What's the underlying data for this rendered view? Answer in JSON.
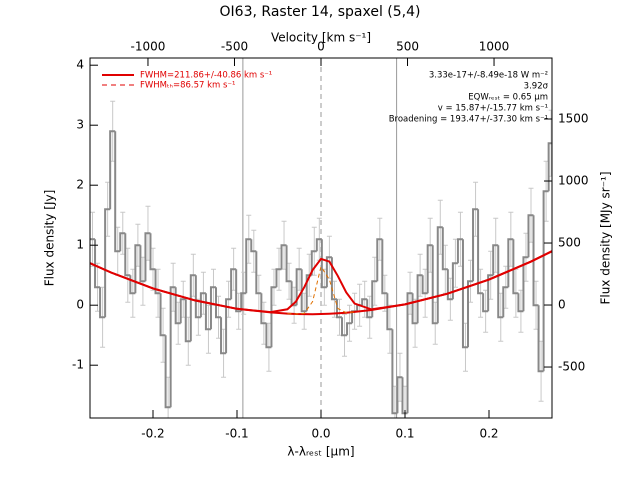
{
  "chart_data": {
    "type": "step",
    "title": "OI63, Raster 14, spaxel (5,4)",
    "xlabel": "λ-λᵣₑₛₜ [μm]",
    "ylabel": "Flux density [Jy]",
    "y2label": "Flux density [MJy sr⁻¹]",
    "x2label": "Velocity [km s⁻¹]",
    "xlim": [
      -0.275,
      0.275
    ],
    "xticks": [
      -0.2,
      -0.1,
      {
        "value": 0,
        "label": "0.0"
      },
      0.1,
      0.2
    ],
    "ylim": [
      -1.88,
      4.12
    ],
    "yticks": [
      -1,
      0,
      1,
      2,
      3,
      4
    ],
    "y2lim": [
      -911,
      1992
    ],
    "y2ticks": [
      -500,
      0,
      500,
      1000,
      1500
    ],
    "x2lim": [
      -1335,
      1335
    ],
    "x2ticks": [
      -1000,
      -500,
      0,
      500,
      1000
    ],
    "color": "#888888",
    "error_color": "#c8c8c8",
    "x": [
      -0.272,
      -0.266,
      -0.26,
      -0.254,
      -0.248,
      -0.242,
      -0.236,
      -0.23,
      -0.224,
      -0.218,
      -0.212,
      -0.206,
      -0.2,
      -0.194,
      -0.188,
      -0.182,
      -0.176,
      -0.17,
      -0.164,
      -0.158,
      -0.152,
      -0.146,
      -0.14,
      -0.134,
      -0.128,
      -0.122,
      -0.116,
      -0.11,
      -0.104,
      -0.098,
      -0.092,
      -0.086,
      -0.08,
      -0.074,
      -0.068,
      -0.062,
      -0.056,
      -0.05,
      -0.044,
      -0.038,
      -0.032,
      -0.026,
      -0.02,
      -0.014,
      -0.008,
      -0.002,
      0.004,
      0.01,
      0.016,
      0.022,
      0.028,
      0.034,
      0.04,
      0.046,
      0.052,
      0.058,
      0.064,
      0.07,
      0.076,
      0.082,
      0.088,
      0.094,
      0.1,
      0.106,
      0.112,
      0.118,
      0.124,
      0.13,
      0.136,
      0.142,
      0.148,
      0.154,
      0.16,
      0.166,
      0.172,
      0.178,
      0.184,
      0.19,
      0.196,
      0.202,
      0.208,
      0.214,
      0.22,
      0.226,
      0.232,
      0.238,
      0.244,
      0.25,
      0.256,
      0.262,
      0.268,
      0.274
    ],
    "values": [
      1.1,
      0.3,
      -0.2,
      1.6,
      2.9,
      0.9,
      1.2,
      0.5,
      0.2,
      1.0,
      0.4,
      1.2,
      0.6,
      0.2,
      -0.5,
      -1.7,
      0.3,
      -0.3,
      0.1,
      -0.6,
      0.5,
      -0.2,
      0.2,
      -0.4,
      0.3,
      -0.2,
      -0.8,
      0.1,
      0.6,
      -0.1,
      0.2,
      1.1,
      0.9,
      0.2,
      -0.3,
      -0.7,
      0.3,
      0.6,
      1.0,
      0.4,
      0.0,
      0.6,
      -0.1,
      0.5,
      0.9,
      1.1,
      0.3,
      0.8,
      0.1,
      -0.2,
      -0.5,
      -0.3,
      -0.1,
      0.0,
      0.1,
      -0.2,
      0.4,
      1.1,
      0.2,
      -0.4,
      -1.8,
      -1.2,
      -1.8,
      0.2,
      -0.3,
      0.5,
      0.2,
      1.0,
      -0.3,
      1.3,
      0.6,
      0.1,
      0.7,
      1.1,
      -0.7,
      0.4,
      1.6,
      0.2,
      -0.1,
      0.5,
      1.0,
      -0.2,
      0.3,
      1.1,
      0.2,
      -0.1,
      0.8,
      1.5,
      0.0,
      -1.1,
      1.9,
      2.7
    ],
    "errors": [
      0.45,
      0.4,
      0.5,
      0.45,
      0.5,
      0.4,
      0.35,
      0.45,
      0.4,
      0.35,
      0.4,
      0.45,
      0.35,
      0.4,
      0.45,
      0.5,
      0.4,
      0.35,
      0.3,
      0.4,
      0.35,
      0.3,
      0.35,
      0.4,
      0.3,
      0.35,
      0.4,
      0.3,
      0.35,
      0.3,
      0.35,
      0.4,
      0.35,
      0.3,
      0.35,
      0.4,
      0.3,
      0.35,
      0.4,
      0.3,
      0.3,
      0.35,
      0.3,
      0.35,
      0.4,
      0.35,
      0.3,
      0.35,
      0.3,
      0.3,
      0.35,
      0.3,
      0.3,
      0.35,
      0.3,
      0.35,
      0.4,
      0.35,
      0.3,
      0.4,
      0.45,
      0.4,
      0.45,
      0.35,
      0.4,
      0.35,
      0.4,
      0.45,
      0.35,
      0.45,
      0.4,
      0.35,
      0.4,
      0.45,
      0.4,
      0.35,
      0.45,
      0.4,
      0.35,
      0.4,
      0.45,
      0.4,
      0.35,
      0.45,
      0.4,
      0.35,
      0.4,
      0.45,
      0.4,
      0.5,
      0.5,
      0.55
    ],
    "reference_lines": [
      {
        "value": -0.093,
        "style": "solid"
      },
      {
        "value": 0,
        "style": "dashed"
      },
      {
        "value": 0.09,
        "style": "solid"
      }
    ],
    "fit": {
      "x": [
        -0.275,
        -0.25,
        -0.2,
        -0.15,
        -0.1,
        -0.06,
        -0.04,
        -0.03,
        -0.02,
        -0.01,
        0,
        0.01,
        0.02,
        0.03,
        0.04,
        0.06,
        0.1,
        0.15,
        0.2,
        0.25,
        0.275
      ],
      "lines": [
        {
          "color": "#e00000",
          "style": "solid",
          "values": [
            0.7,
            0.545,
            0.28,
            0.08,
            -0.06,
            -0.12,
            -0.14,
            -0.147,
            -0.149,
            -0.15,
            -0.147,
            -0.142,
            -0.135,
            -0.125,
            -0.112,
            -0.08,
            0.014,
            0.19,
            0.427,
            0.727,
            0.9
          ]
        },
        {
          "name": "FWHM=211.86+/-40.86 km s⁻¹",
          "color": "#e00000",
          "style": "solid",
          "values": [
            0.7,
            0.545,
            0.28,
            0.08,
            -0.06,
            -0.116,
            -0.068,
            0.058,
            0.298,
            0.586,
            0.772,
            0.727,
            0.488,
            0.214,
            0.027,
            -0.07,
            0.014,
            0.19,
            0.427,
            0.727,
            0.9
          ]
        },
        {
          "name": "FWHMₜₕ=86.57 km s⁻¹",
          "color": "#e07000",
          "style": "dashed",
          "values": [
            null,
            null,
            null,
            null,
            null,
            null,
            -0.14,
            -0.147,
            -0.138,
            0.06,
            0.643,
            0.428,
            -0.055,
            -0.125,
            -0.112,
            null,
            null,
            null,
            null,
            null,
            null
          ]
        }
      ]
    },
    "annotations": [
      "3.33e-17+/-8.49e-18 W m⁻²",
      "3.92σ",
      "EQWᵣₑₛₜ = 0.65 μm",
      "v = 15.87+/-15.77 km s⁻¹",
      "Broadening = 193.47+/-37.30 km s⁻¹"
    ]
  }
}
